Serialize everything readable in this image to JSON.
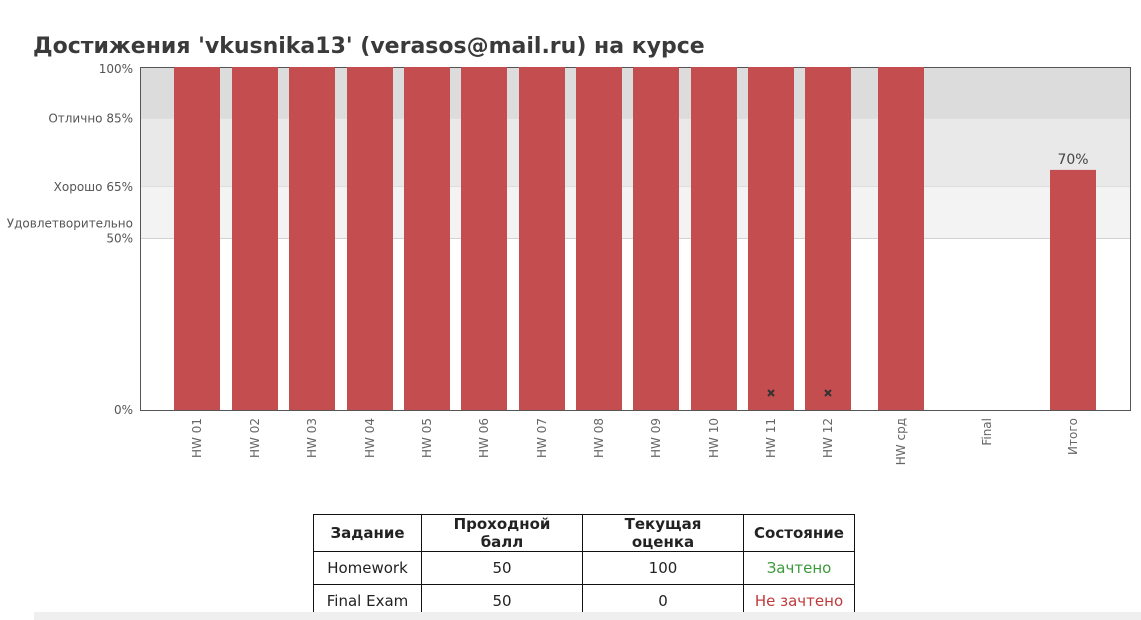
{
  "page_title": "Достижения 'vkusnika13' (verasos@mail.ru) на курсе",
  "chart_data": {
    "type": "bar",
    "ylim": [
      0,
      100
    ],
    "grade_bands": [
      {
        "label": "Отлично 85%",
        "from": 85,
        "to": 100,
        "color": "#dcdcdc"
      },
      {
        "label": "Хорошо 65%",
        "from": 65,
        "to": 85,
        "color": "#e9e9e9"
      },
      {
        "label": "Удовлетворительно 50%",
        "from": 50,
        "to": 65,
        "color": "#f3f3f3"
      }
    ],
    "y_ticks": [
      {
        "label": "100%",
        "value": 100
      },
      {
        "label": "Отлично 85%",
        "value": 85
      },
      {
        "label": "Хорошо 65%",
        "value": 65
      },
      {
        "label": "Удовлетворительно",
        "label2": "50%",
        "value": 50
      },
      {
        "label": "0%",
        "value": 0
      }
    ],
    "categories": [
      "HW 01",
      "HW 02",
      "HW 03",
      "HW 04",
      "HW 05",
      "HW 06",
      "HW 07",
      "HW 08",
      "HW 09",
      "HW 10",
      "HW 11",
      "HW 12",
      "HW срд",
      "Final",
      "Итого"
    ],
    "values": [
      100,
      100,
      100,
      100,
      100,
      100,
      100,
      100,
      100,
      100,
      100,
      100,
      100,
      0,
      70
    ],
    "dropped": [
      false,
      false,
      false,
      false,
      false,
      false,
      false,
      false,
      false,
      false,
      true,
      true,
      false,
      false,
      false
    ],
    "data_labels": [
      "",
      "",
      "",
      "",
      "",
      "",
      "",
      "",
      "",
      "",
      "",
      "",
      "",
      "",
      "70%"
    ],
    "bar_color": "#c44d4f",
    "drop_marker": "x-mark-icon"
  },
  "table": {
    "headers": [
      "Задание",
      "Проходной балл",
      "Текущая оценка",
      "Состояние"
    ],
    "rows": [
      {
        "assignment": "Homework",
        "passing": "50",
        "current": "100",
        "status": "Зачтено",
        "status_color": "#3a9a3a"
      },
      {
        "assignment": "Final Exam",
        "passing": "50",
        "current": "0",
        "status": "Не зачтено",
        "status_color": "#c0393b"
      }
    ]
  }
}
